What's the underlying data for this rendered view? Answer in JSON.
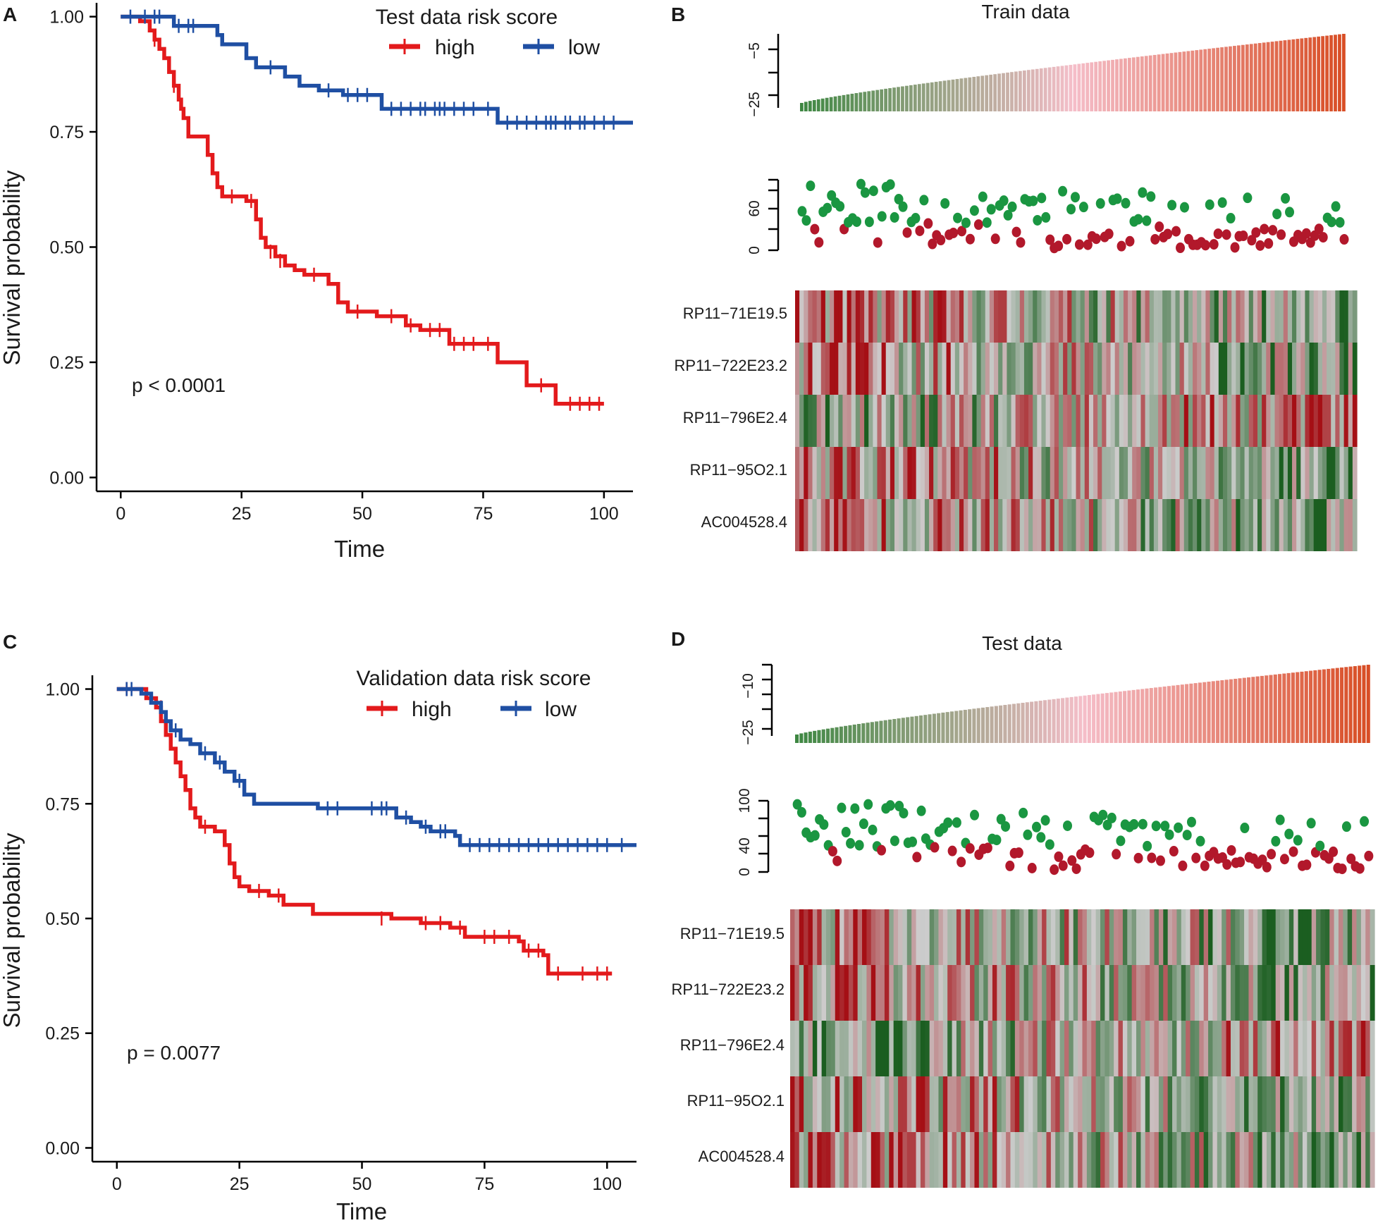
{
  "figure": {
    "panels": [
      {
        "letter": "A",
        "type": "km",
        "legend_title": "Test data risk score",
        "p_value": "p < 0.0001",
        "x_label": "Time",
        "y_label": "Survival probability"
      },
      {
        "letter": "B",
        "type": "risk",
        "title": "Train data",
        "score_ticks": [
          "−5",
          "−25"
        ],
        "time_ticks": [
          "60",
          "0"
        ]
      },
      {
        "letter": "C",
        "type": "km",
        "legend_title": "Validation data risk score",
        "p_value": "p = 0.0077",
        "x_label": "Time",
        "y_label": "Survival probability"
      },
      {
        "letter": "D",
        "type": "risk",
        "title": "Test data",
        "score_ticks": [
          "−10",
          "−25"
        ],
        "time_ticks": [
          "100",
          "40",
          "0"
        ]
      }
    ],
    "genes": [
      "RP11−71E19.5",
      "RP11−722E23.2",
      "RP11−796E2.4",
      "RP11−95O2.1",
      "AC004528.4"
    ],
    "colors": {
      "high": "#e31a1c",
      "low": "#1f4fa3",
      "dead": "#b2182b",
      "alive": "#1a9641",
      "heat_red": "#a50f15",
      "heat_green": "#1b5e20"
    }
  },
  "chart_data": [
    {
      "panel": "A",
      "type": "line",
      "title": "",
      "xlabel": "Time",
      "ylabel": "Survival probability",
      "xlim": [
        -5,
        106
      ],
      "ylim": [
        -0.03,
        1.03
      ],
      "x_ticks": [
        0,
        25,
        50,
        75,
        100
      ],
      "y_ticks": [
        0.0,
        0.25,
        0.5,
        0.75,
        1.0
      ],
      "x_tick_labels": [
        "0",
        "25",
        "50",
        "75",
        "100"
      ],
      "y_tick_labels": [
        "0.00",
        "0.25",
        "0.50",
        "0.75",
        "1.00"
      ],
      "legend": {
        "title": "Test data risk score",
        "position": "top-right"
      },
      "annotation": "p < 0.0001",
      "series": [
        {
          "name": "high",
          "step": [
            [
              0,
              1.0
            ],
            [
              4,
              1.0
            ],
            [
              4,
              0.99
            ],
            [
              6,
              0.97
            ],
            [
              7,
              0.95
            ],
            [
              8,
              0.93
            ],
            [
              9,
              0.91
            ],
            [
              10,
              0.88
            ],
            [
              11,
              0.85
            ],
            [
              12,
              0.82
            ],
            [
              12.5,
              0.8
            ],
            [
              13,
              0.78
            ],
            [
              14,
              0.74
            ],
            [
              17,
              0.74
            ],
            [
              18,
              0.7
            ],
            [
              19,
              0.66
            ],
            [
              20,
              0.63
            ],
            [
              21,
              0.61
            ],
            [
              25,
              0.61
            ],
            [
              26,
              0.6
            ],
            [
              28,
              0.56
            ],
            [
              29,
              0.52
            ],
            [
              30,
              0.5
            ],
            [
              32,
              0.48
            ],
            [
              34,
              0.46
            ],
            [
              36,
              0.45
            ],
            [
              38,
              0.44
            ],
            [
              42,
              0.44
            ],
            [
              43,
              0.42
            ],
            [
              45,
              0.38
            ],
            [
              47,
              0.36
            ],
            [
              52,
              0.36
            ],
            [
              53,
              0.35
            ],
            [
              58,
              0.35
            ],
            [
              59,
              0.33
            ],
            [
              62,
              0.32
            ],
            [
              67,
              0.32
            ],
            [
              68,
              0.29
            ],
            [
              78,
              0.29
            ],
            [
              78,
              0.25
            ],
            [
              84,
              0.25
            ],
            [
              84,
              0.2
            ],
            [
              90,
              0.2
            ],
            [
              90,
              0.16
            ],
            [
              100,
              0.16
            ]
          ],
          "censor": [
            [
              7,
              0.95
            ],
            [
              11,
              0.85
            ],
            [
              23,
              0.61
            ],
            [
              27,
              0.6
            ],
            [
              31,
              0.49
            ],
            [
              33,
              0.47
            ],
            [
              40,
              0.44
            ],
            [
              49,
              0.36
            ],
            [
              56,
              0.35
            ],
            [
              60,
              0.33
            ],
            [
              64,
              0.32
            ],
            [
              66,
              0.32
            ],
            [
              69,
              0.29
            ],
            [
              71,
              0.29
            ],
            [
              73,
              0.29
            ],
            [
              76,
              0.29
            ],
            [
              87,
              0.2
            ],
            [
              93,
              0.16
            ],
            [
              95,
              0.16
            ],
            [
              97,
              0.16
            ],
            [
              99,
              0.16
            ]
          ]
        },
        {
          "name": "low",
          "step": [
            [
              0,
              1.0
            ],
            [
              10,
              1.0
            ],
            [
              11,
              0.98
            ],
            [
              19,
              0.98
            ],
            [
              20,
              0.96
            ],
            [
              21,
              0.94
            ],
            [
              25,
              0.94
            ],
            [
              26,
              0.91
            ],
            [
              28,
              0.89
            ],
            [
              33,
              0.89
            ],
            [
              34,
              0.87
            ],
            [
              37,
              0.85
            ],
            [
              41,
              0.84
            ],
            [
              45,
              0.84
            ],
            [
              46,
              0.83
            ],
            [
              53,
              0.83
            ],
            [
              54,
              0.8
            ],
            [
              77,
              0.8
            ],
            [
              78,
              0.77
            ],
            [
              106,
              0.77
            ]
          ],
          "censor": [
            [
              2,
              1.0
            ],
            [
              5,
              1.0
            ],
            [
              7,
              1.0
            ],
            [
              8,
              1.0
            ],
            [
              12,
              0.98
            ],
            [
              14,
              0.98
            ],
            [
              15,
              0.98
            ],
            [
              31,
              0.89
            ],
            [
              43,
              0.84
            ],
            [
              47,
              0.83
            ],
            [
              49,
              0.83
            ],
            [
              51,
              0.83
            ],
            [
              56,
              0.8
            ],
            [
              58,
              0.8
            ],
            [
              60,
              0.8
            ],
            [
              62,
              0.8
            ],
            [
              63,
              0.8
            ],
            [
              65,
              0.8
            ],
            [
              66,
              0.8
            ],
            [
              67,
              0.8
            ],
            [
              69,
              0.8
            ],
            [
              71,
              0.8
            ],
            [
              73,
              0.8
            ],
            [
              76,
              0.8
            ],
            [
              80,
              0.77
            ],
            [
              82,
              0.77
            ],
            [
              84,
              0.77
            ],
            [
              86,
              0.77
            ],
            [
              88,
              0.77
            ],
            [
              89,
              0.77
            ],
            [
              90,
              0.77
            ],
            [
              92,
              0.77
            ],
            [
              93,
              0.77
            ],
            [
              95,
              0.77
            ],
            [
              96,
              0.77
            ],
            [
              98,
              0.77
            ],
            [
              100,
              0.77
            ],
            [
              102,
              0.77
            ]
          ]
        }
      ]
    },
    {
      "panel": "C",
      "type": "line",
      "title": "",
      "xlabel": "Time",
      "ylabel": "Survival probability",
      "xlim": [
        -5,
        106
      ],
      "ylim": [
        -0.03,
        1.03
      ],
      "x_ticks": [
        0,
        25,
        50,
        75,
        100
      ],
      "y_ticks": [
        0.0,
        0.25,
        0.5,
        0.75,
        1.0
      ],
      "x_tick_labels": [
        "0",
        "25",
        "50",
        "75",
        "100"
      ],
      "y_tick_labels": [
        "0.00",
        "0.25",
        "0.50",
        "0.75",
        "1.00"
      ],
      "legend": {
        "title": "Validation data risk score",
        "position": "top-right"
      },
      "annotation": "p = 0.0077",
      "series": [
        {
          "name": "high",
          "step": [
            [
              0,
              1.0
            ],
            [
              5,
              1.0
            ],
            [
              6,
              0.98
            ],
            [
              8,
              0.96
            ],
            [
              9,
              0.93
            ],
            [
              10,
              0.9
            ],
            [
              11,
              0.87
            ],
            [
              12,
              0.84
            ],
            [
              13,
              0.81
            ],
            [
              14,
              0.78
            ],
            [
              15,
              0.74
            ],
            [
              16,
              0.72
            ],
            [
              17,
              0.7
            ],
            [
              20,
              0.69
            ],
            [
              22,
              0.66
            ],
            [
              23,
              0.62
            ],
            [
              24,
              0.59
            ],
            [
              25,
              0.57
            ],
            [
              27,
              0.56
            ],
            [
              31,
              0.55
            ],
            [
              34,
              0.53
            ],
            [
              40,
              0.51
            ],
            [
              56,
              0.5
            ],
            [
              62,
              0.49
            ],
            [
              68,
              0.48
            ],
            [
              71,
              0.46
            ],
            [
              82,
              0.45
            ],
            [
              83,
              0.43
            ],
            [
              87,
              0.42
            ],
            [
              88,
              0.38
            ],
            [
              101,
              0.38
            ]
          ],
          "censor": [
            [
              2,
              1.0
            ],
            [
              9,
              0.96
            ],
            [
              18,
              0.7
            ],
            [
              29,
              0.56
            ],
            [
              33,
              0.55
            ],
            [
              54,
              0.5
            ],
            [
              63,
              0.49
            ],
            [
              66,
              0.49
            ],
            [
              70,
              0.48
            ],
            [
              75,
              0.46
            ],
            [
              77,
              0.46
            ],
            [
              80,
              0.46
            ],
            [
              84,
              0.43
            ],
            [
              86,
              0.43
            ],
            [
              90,
              0.38
            ],
            [
              95,
              0.38
            ],
            [
              98,
              0.38
            ],
            [
              100,
              0.38
            ]
          ]
        },
        {
          "name": "low",
          "step": [
            [
              0,
              1.0
            ],
            [
              4,
              1.0
            ],
            [
              5,
              0.99
            ],
            [
              7,
              0.97
            ],
            [
              9,
              0.95
            ],
            [
              10,
              0.93
            ],
            [
              11,
              0.91
            ],
            [
              13,
              0.89
            ],
            [
              15,
              0.88
            ],
            [
              17,
              0.86
            ],
            [
              20,
              0.84
            ],
            [
              22,
              0.82
            ],
            [
              24,
              0.8
            ],
            [
              26,
              0.77
            ],
            [
              28,
              0.75
            ],
            [
              40,
              0.75
            ],
            [
              41,
              0.74
            ],
            [
              56,
              0.74
            ],
            [
              57,
              0.72
            ],
            [
              60,
              0.71
            ],
            [
              62,
              0.7
            ],
            [
              64,
              0.69
            ],
            [
              69,
              0.68
            ],
            [
              70,
              0.66
            ],
            [
              106,
              0.66
            ]
          ],
          "censor": [
            [
              2,
              1.0
            ],
            [
              3,
              1.0
            ],
            [
              12,
              0.91
            ],
            [
              18,
              0.86
            ],
            [
              21,
              0.84
            ],
            [
              25,
              0.8
            ],
            [
              43,
              0.74
            ],
            [
              45,
              0.74
            ],
            [
              52,
              0.74
            ],
            [
              54,
              0.74
            ],
            [
              55,
              0.74
            ],
            [
              59,
              0.72
            ],
            [
              63,
              0.7
            ],
            [
              66,
              0.69
            ],
            [
              67,
              0.69
            ],
            [
              72,
              0.66
            ],
            [
              74,
              0.66
            ],
            [
              76,
              0.66
            ],
            [
              78,
              0.66
            ],
            [
              80,
              0.66
            ],
            [
              82,
              0.66
            ],
            [
              84,
              0.66
            ],
            [
              86,
              0.66
            ],
            [
              88,
              0.66
            ],
            [
              90,
              0.66
            ],
            [
              92,
              0.66
            ],
            [
              94,
              0.66
            ],
            [
              96,
              0.66
            ],
            [
              98,
              0.66
            ],
            [
              100,
              0.66
            ],
            [
              103,
              0.66
            ]
          ]
        }
      ]
    },
    {
      "panel": "B",
      "type": "heatmap",
      "title": "Train data",
      "n_samples": 130,
      "risk_score_range": [
        -28,
        -3
      ],
      "risk_score_ticks": [
        -25,
        -5
      ],
      "survival_time_range": [
        0,
        100
      ],
      "survival_time_ticks": [
        0,
        60
      ],
      "rows": [
        "RP11−71E19.5",
        "RP11−722E23.2",
        "RP11−796E2.4",
        "RP11−95O2.1",
        "AC004528.4"
      ],
      "color_scale": [
        "green (low)",
        "light grey (mid)",
        "red (high)"
      ],
      "seed": 11
    },
    {
      "panel": "D",
      "type": "heatmap",
      "title": "Test data",
      "n_samples": 130,
      "risk_score_range": [
        -28,
        -4
      ],
      "risk_score_ticks": [
        -25,
        -10
      ],
      "survival_time_range": [
        0,
        105
      ],
      "survival_time_ticks": [
        0,
        40,
        100
      ],
      "rows": [
        "RP11−71E19.5",
        "RP11−722E23.2",
        "RP11−796E2.4",
        "RP11−95O2.1",
        "AC004528.4"
      ],
      "color_scale": [
        "green (low)",
        "light grey (mid)",
        "red (high)"
      ],
      "seed": 29
    }
  ]
}
